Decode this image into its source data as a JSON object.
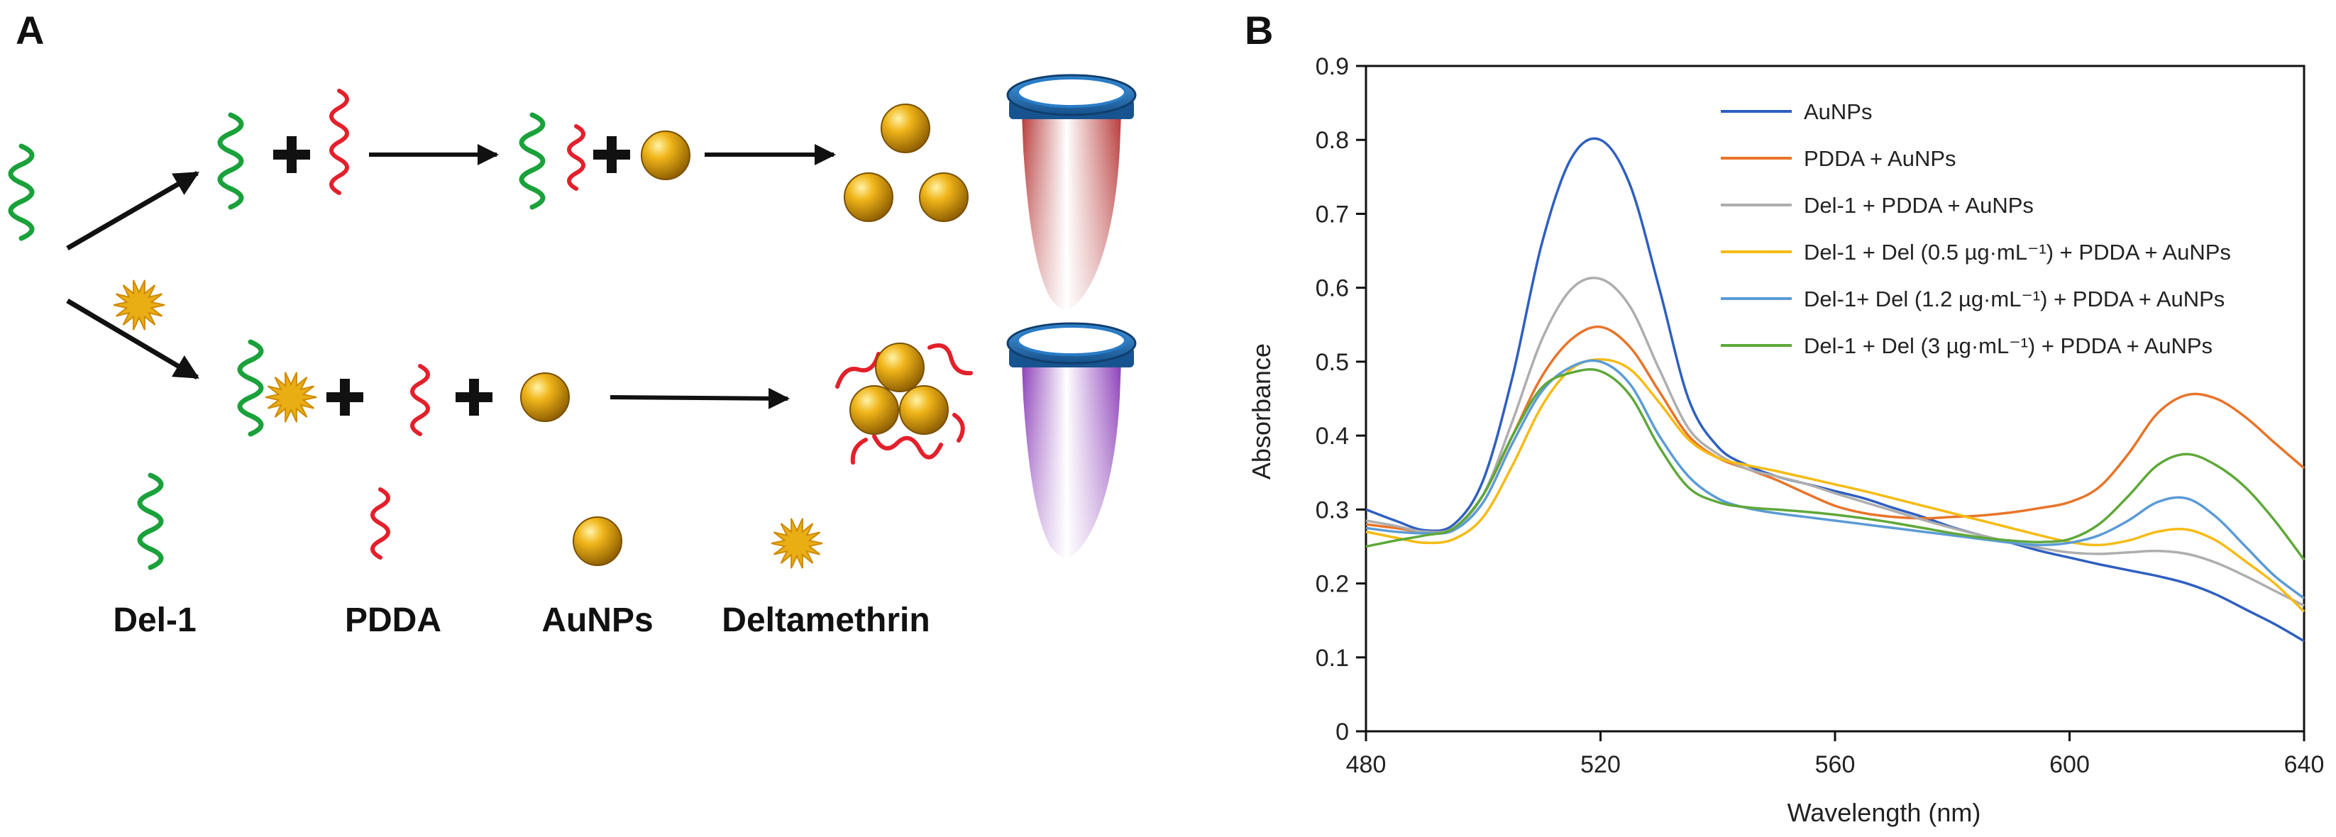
{
  "panels": {
    "a": "A",
    "b": "B"
  },
  "schematic": {
    "legend_labels": {
      "aptamer": "Del-1",
      "pdda": "PDDA",
      "aunps": "AuNPs",
      "deltamethrin": "Deltamethrin"
    },
    "colors": {
      "aptamer": "#1aa13a",
      "pdda": "#e3202b",
      "gold": "#e8ae14",
      "tube_red": "#c24848",
      "tube_purple": "#9a4fc2",
      "cap": "#1f6fb5"
    }
  },
  "chart_data": {
    "type": "line",
    "title": "",
    "xlabel": "Wavelength (nm)",
    "ylabel": "Absorbance",
    "xlim": [
      480,
      640
    ],
    "ylim": [
      0,
      0.9
    ],
    "xticks": [
      480,
      520,
      560,
      600,
      640
    ],
    "xtick_labels": [
      "480",
      "520",
      "560",
      "600",
      "640"
    ],
    "yticks": [
      0,
      0.1,
      0.2,
      0.3,
      0.4,
      0.5,
      0.6,
      0.7,
      0.8,
      0.9
    ],
    "ytick_labels": [
      "0",
      "0.1",
      "0.2",
      "0.3",
      "0.4",
      "0.5",
      "0.6",
      "0.7",
      "0.8",
      "0.9"
    ],
    "legend_position": "top-right",
    "x": [
      480,
      485,
      490,
      495,
      500,
      505,
      510,
      515,
      520,
      525,
      530,
      535,
      540,
      545,
      550,
      555,
      560,
      565,
      570,
      575,
      580,
      585,
      590,
      595,
      600,
      605,
      610,
      615,
      620,
      625,
      630,
      635,
      640
    ],
    "series": [
      {
        "name": "AuNPs",
        "color": "#2f5fc0",
        "values": [
          0.3,
          0.285,
          0.272,
          0.28,
          0.34,
          0.48,
          0.66,
          0.775,
          0.8,
          0.74,
          0.6,
          0.45,
          0.385,
          0.36,
          0.345,
          0.335,
          0.325,
          0.315,
          0.302,
          0.29,
          0.276,
          0.265,
          0.255,
          0.244,
          0.235,
          0.226,
          0.218,
          0.21,
          0.2,
          0.185,
          0.165,
          0.145,
          0.122
        ]
      },
      {
        "name": "PDDA + AuNPs",
        "color": "#e8742a",
        "values": [
          0.28,
          0.275,
          0.27,
          0.275,
          0.32,
          0.4,
          0.48,
          0.53,
          0.547,
          0.52,
          0.46,
          0.4,
          0.37,
          0.355,
          0.34,
          0.322,
          0.305,
          0.295,
          0.29,
          0.288,
          0.29,
          0.292,
          0.296,
          0.302,
          0.31,
          0.33,
          0.375,
          0.43,
          0.455,
          0.45,
          0.425,
          0.39,
          0.356
        ]
      },
      {
        "name": "Del-1 + PDDA + AuNPs",
        "color": "#aeaeae",
        "values": [
          0.285,
          0.278,
          0.27,
          0.275,
          0.32,
          0.42,
          0.53,
          0.598,
          0.612,
          0.575,
          0.49,
          0.41,
          0.375,
          0.355,
          0.345,
          0.335,
          0.322,
          0.31,
          0.298,
          0.286,
          0.275,
          0.265,
          0.256,
          0.248,
          0.242,
          0.24,
          0.242,
          0.244,
          0.24,
          0.228,
          0.21,
          0.19,
          0.17
        ]
      },
      {
        "name": "Del-1 + Del (0.5 µg·mL⁻¹) + PDDA + AuNPs",
        "color": "#f5bb14",
        "values": [
          0.27,
          0.262,
          0.255,
          0.26,
          0.29,
          0.36,
          0.44,
          0.49,
          0.503,
          0.49,
          0.445,
          0.395,
          0.37,
          0.36,
          0.352,
          0.343,
          0.334,
          0.325,
          0.315,
          0.305,
          0.295,
          0.285,
          0.275,
          0.265,
          0.256,
          0.252,
          0.258,
          0.27,
          0.273,
          0.258,
          0.23,
          0.2,
          0.162
        ]
      },
      {
        "name": "Del-1+ Del (1.2 µg·mL⁻¹) + PDDA + AuNPs",
        "color": "#5b9bd5",
        "values": [
          0.275,
          0.27,
          0.268,
          0.272,
          0.31,
          0.39,
          0.46,
          0.493,
          0.5,
          0.47,
          0.4,
          0.345,
          0.315,
          0.302,
          0.295,
          0.29,
          0.285,
          0.28,
          0.275,
          0.27,
          0.265,
          0.26,
          0.255,
          0.252,
          0.255,
          0.265,
          0.285,
          0.31,
          0.315,
          0.29,
          0.25,
          0.21,
          0.18
        ]
      },
      {
        "name": "Del-1 + Del (3 µg·mL⁻¹) + PDDA + AuNPs",
        "color": "#5fa83a",
        "values": [
          0.25,
          0.258,
          0.265,
          0.275,
          0.32,
          0.4,
          0.465,
          0.485,
          0.487,
          0.455,
          0.385,
          0.33,
          0.31,
          0.303,
          0.3,
          0.297,
          0.293,
          0.288,
          0.282,
          0.275,
          0.268,
          0.262,
          0.258,
          0.256,
          0.26,
          0.28,
          0.318,
          0.36,
          0.375,
          0.36,
          0.33,
          0.285,
          0.232
        ]
      }
    ]
  }
}
